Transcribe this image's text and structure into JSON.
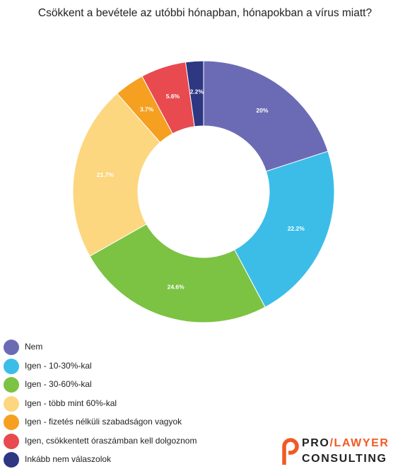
{
  "chart_data": {
    "type": "pie",
    "title": "Csökkent a bevétele az utóbbi hónapban, hónapokban a vírus miatt?",
    "categories": [
      "Nem",
      "Igen - 10-30%-kal",
      "Igen - 30-60%-kal",
      "Igen - több mint 60%-kal",
      "Igen - fizetés nélküli szabadságon vagyok",
      "Igen, csökkentett óraszámban kell dolgoznom",
      "Inkább nem válaszolok"
    ],
    "values": [
      20,
      22.2,
      24.6,
      21.7,
      3.7,
      5.6,
      2.2
    ],
    "value_labels": [
      "20%",
      "22.2%",
      "24.6%",
      "21.7%",
      "3.7%",
      "5.6%",
      "2.2%"
    ],
    "colors": [
      "#6b6bb5",
      "#3bbde8",
      "#7cc243",
      "#fcd77f",
      "#f5a021",
      "#e84a50",
      "#2e3782"
    ],
    "legend_position": "bottom-left"
  },
  "logo": {
    "line1_part1": "PRO",
    "line1_slash": "/",
    "line1_part2": "LAWYER",
    "line2": "CONSULTING"
  }
}
